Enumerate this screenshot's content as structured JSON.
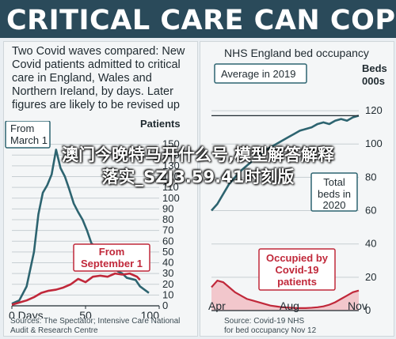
{
  "headline": "CRITICAL CARE CAN COPE",
  "left_panel": {
    "description": "Two Covid waves compared: New Covid patients admitted to critical care in England, Wales and Northern Ireland, by days. Later figures are likely to be revised up",
    "sources": [
      "Sources: The Spectator; Intensive Care National",
      "Audit & Research Centre"
    ]
  },
  "right_panel": {
    "title": "NHS England bed occupancy",
    "sources": [
      "Source: Covid-19 NHS",
      "for bed occupancy Nov 12"
    ]
  },
  "watermark": [
    "澳门今晚特马开什么号,模型解答解释",
    "落实_SZJ3.59.41时刻版"
  ],
  "colors": {
    "title_bg": "#2a4a5a",
    "wave1": "#2d6470",
    "wave2": "#c0283a",
    "occupancy": "#2d6470",
    "covid_fill": "#f2c7cc"
  },
  "chart_data": [
    {
      "type": "line",
      "title": "",
      "xlabel": "Days",
      "ylabel": "Patients",
      "xlim": [
        0,
        100
      ],
      "ylim": [
        0,
        160
      ],
      "x_ticks": [
        0,
        50,
        100
      ],
      "x_tick_labels": [
        "0 Days",
        "50",
        "100"
      ],
      "y_ticks": [
        0,
        10,
        20,
        30,
        40,
        50,
        60,
        70,
        80,
        90,
        100,
        110,
        120,
        130,
        140,
        150
      ],
      "grid": true,
      "series": [
        {
          "name": "From March 1",
          "x": [
            0,
            5,
            10,
            15,
            18,
            21,
            24,
            27,
            30,
            33,
            36,
            39,
            42,
            45,
            48,
            51,
            54,
            57,
            60,
            63,
            66,
            69,
            72,
            75,
            78,
            81,
            84,
            87,
            90,
            93
          ],
          "values": [
            2,
            5,
            18,
            50,
            85,
            105,
            112,
            122,
            145,
            128,
            120,
            108,
            95,
            87,
            80,
            70,
            58,
            55,
            48,
            44,
            40,
            36,
            32,
            30,
            26,
            25,
            24,
            18,
            15,
            12
          ]
        },
        {
          "name": "From September 1",
          "x": [
            0,
            5,
            10,
            15,
            20,
            25,
            30,
            35,
            40,
            45,
            50,
            55,
            60,
            65,
            70,
            75,
            80,
            85,
            87
          ],
          "values": [
            1,
            3,
            5,
            8,
            12,
            14,
            15,
            17,
            20,
            25,
            22,
            27,
            28,
            27,
            30,
            29,
            30,
            27,
            24
          ]
        }
      ],
      "annotations": [
        "From March 1",
        "From September 1"
      ]
    },
    {
      "type": "area",
      "title": "NHS England bed occupancy",
      "xlabel": "",
      "ylabel": "Beds 000s",
      "categories": [
        "Apr",
        "Aug",
        "Nov"
      ],
      "ylim": [
        0,
        130
      ],
      "y_ticks": [
        0,
        20,
        40,
        60,
        80,
        100,
        120
      ],
      "grid": true,
      "series": [
        {
          "name": "Total beds in 2020",
          "x": [
            0,
            4,
            8,
            12,
            16,
            20,
            24,
            28,
            32,
            36,
            40,
            44,
            48,
            52,
            56,
            60,
            64,
            68,
            72,
            76,
            80,
            84,
            88,
            92,
            96,
            100
          ],
          "values": [
            60,
            64,
            70,
            76,
            80,
            84,
            87,
            90,
            93,
            96,
            98,
            100,
            102,
            104,
            106,
            108,
            109,
            110,
            112,
            113,
            112,
            114,
            115,
            114,
            116,
            117
          ]
        },
        {
          "name": "Occupied by Covid-19 patients",
          "x": [
            0,
            4,
            8,
            12,
            16,
            20,
            24,
            28,
            32,
            36,
            40,
            44,
            48,
            52,
            56,
            60,
            64,
            68,
            72,
            76,
            80,
            84,
            88,
            92,
            96,
            100
          ],
          "values": [
            14,
            18,
            17,
            14,
            11,
            9,
            7,
            6,
            5,
            4,
            3,
            2.5,
            2,
            1.8,
            1.6,
            1.5,
            1.5,
            1.7,
            2,
            2.5,
            3.5,
            5,
            7,
            9,
            11,
            12
          ]
        }
      ],
      "reference_line": {
        "label": "Average in 2019",
        "value": 117
      },
      "annotations": [
        "Average in 2019",
        "Total beds in 2020",
        "Occupied by Covid-19 patients"
      ]
    }
  ]
}
